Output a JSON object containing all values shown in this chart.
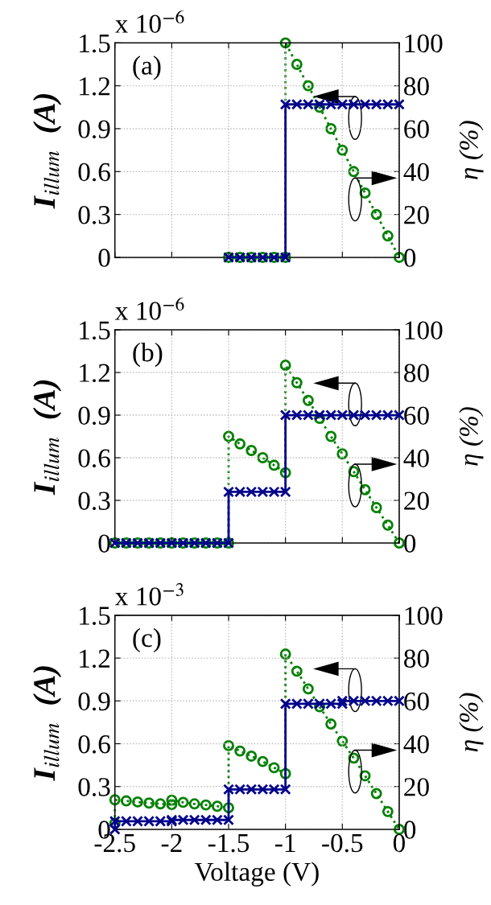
{
  "chart_data": [
    {
      "type": "line",
      "annotations": [
        "x 10$^{−6}$",
        "(a)"
      ],
      "ylabel": "I$_{illum}$  (A)",
      "y2label": "η (%)",
      "xlim": [
        -2.5,
        0
      ],
      "xticks": [
        -2.5,
        -2,
        -1.5,
        -1,
        -0.5,
        0
      ],
      "ylim": [
        0,
        1.5
      ],
      "yticks": [
        0,
        0.3,
        0.6,
        0.9,
        1.2,
        1.5
      ],
      "y2lim": [
        0,
        100
      ],
      "y2ticks": [
        0,
        20,
        40,
        60,
        80,
        100
      ],
      "grid": true,
      "tick_labels": "y",
      "series": [
        {
          "color": "#00008b",
          "marker": "cross",
          "line_style": "solid",
          "x": [
            -1.5,
            -1.4,
            -1.3,
            -1.2,
            -1.1,
            -1.0,
            -1.0,
            -0.9,
            -0.8,
            -0.7,
            -0.6,
            -0.5,
            -0.4,
            -0.3,
            -0.2,
            -0.1,
            0
          ],
          "values": [
            0,
            0,
            0,
            0,
            0,
            0,
            1.07,
            1.07,
            1.07,
            1.07,
            1.07,
            1.07,
            1.07,
            1.07,
            1.07,
            1.07,
            1.07
          ]
        },
        {
          "color": "#008000",
          "marker": "circle",
          "line_style": "dotted",
          "axis": "y2",
          "x": [
            -1.5,
            -1.4,
            -1.3,
            -1.2,
            -1.1,
            -1.0,
            -1.0,
            -0.9,
            -0.8,
            -0.7,
            -0.6,
            -0.5,
            -0.4,
            -0.3,
            -0.2,
            -0.1,
            0
          ],
          "values": [
            0,
            0,
            0,
            0,
            0,
            0,
            100,
            90,
            80,
            70,
            60,
            50,
            40,
            30,
            20,
            10,
            0
          ]
        }
      ]
    },
    {
      "type": "line",
      "annotations": [
        "x 10$^{−6}$",
        "(b)"
      ],
      "ylabel": "I$_{illum}$  (A)",
      "y2label": "η (%)",
      "xlim": [
        -2.5,
        0
      ],
      "xticks": [
        -2.5,
        -2,
        -1.5,
        -1,
        -0.5,
        0
      ],
      "ylim": [
        0,
        1.5
      ],
      "yticks": [
        0,
        0.3,
        0.6,
        0.9,
        1.2,
        1.5
      ],
      "y2lim": [
        0,
        100
      ],
      "y2ticks": [
        0,
        20,
        40,
        60,
        80,
        100
      ],
      "grid": true,
      "tick_labels": "y",
      "series": [
        {
          "color": "#00008b",
          "marker": "cross",
          "line_style": "solid",
          "x": [
            -2.5,
            -2.4,
            -2.3,
            -2.2,
            -2.1,
            -2.0,
            -1.9,
            -1.8,
            -1.7,
            -1.6,
            -1.5,
            -1.5,
            -1.4,
            -1.3,
            -1.2,
            -1.1,
            -1.0,
            -1.0,
            -0.9,
            -0.8,
            -0.7,
            -0.6,
            -0.5,
            -0.4,
            -0.3,
            -0.2,
            -0.1,
            0
          ],
          "values": [
            0,
            0,
            0,
            0,
            0,
            0,
            0,
            0,
            0,
            0,
            0,
            0.36,
            0.36,
            0.36,
            0.36,
            0.36,
            0.36,
            0.9,
            0.9,
            0.9,
            0.9,
            0.9,
            0.9,
            0.9,
            0.9,
            0.9,
            0.9,
            0.9
          ]
        },
        {
          "color": "#008000",
          "marker": "circle",
          "line_style": "dotted",
          "axis": "y2",
          "x": [
            -2.5,
            -2.4,
            -2.3,
            -2.2,
            -2.1,
            -2.0,
            -1.9,
            -1.8,
            -1.7,
            -1.6,
            -1.5,
            -1.5,
            -1.4,
            -1.3,
            -1.2,
            -1.1,
            -1.0,
            -1.0,
            -0.9,
            -0.8,
            -0.7,
            -0.6,
            -0.5,
            -0.4,
            -0.3,
            -0.2,
            -0.1,
            0
          ],
          "values": [
            0,
            0,
            0,
            0,
            0,
            0,
            0,
            0,
            0,
            0,
            0,
            50,
            46.5,
            43.4,
            40,
            36.5,
            33,
            83.4,
            75.2,
            66.9,
            58.5,
            50,
            41.8,
            33.5,
            25,
            16.6,
            8.4,
            0
          ]
        }
      ]
    },
    {
      "type": "line",
      "annotations": [
        "x 10$^{−3}$",
        "(c)"
      ],
      "xlabel": "Voltage (V)",
      "ylabel": "I$_{illum}$  (A)",
      "y2label": "η (%)",
      "xlim": [
        -2.5,
        0
      ],
      "xticks": [
        -2.5,
        -2,
        -1.5,
        -1,
        -0.5,
        0
      ],
      "ylim": [
        0,
        1.5
      ],
      "yticks": [
        0,
        0.3,
        0.6,
        0.9,
        1.2,
        1.5
      ],
      "y2lim": [
        0,
        100
      ],
      "y2ticks": [
        0,
        20,
        40,
        60,
        80,
        100
      ],
      "grid": true,
      "series": [
        {
          "color": "#00008b",
          "marker": "cross",
          "line_style": "solid",
          "x": [
            -2.5,
            -2.5,
            -2.4,
            -2.3,
            -2.2,
            -2.1,
            -2.0,
            -2.0,
            -1.9,
            -1.8,
            -1.7,
            -1.6,
            -1.5,
            -1.5,
            -1.4,
            -1.3,
            -1.2,
            -1.1,
            -1.0,
            -1.0,
            -0.9,
            -0.8,
            -0.7,
            -0.6,
            -0.5,
            -0.5,
            -0.4,
            -0.3,
            -0.2,
            -0.1,
            0
          ],
          "values": [
            0,
            0.057,
            0.057,
            0.057,
            0.057,
            0.057,
            0.057,
            0.066,
            0.066,
            0.066,
            0.066,
            0.066,
            0.066,
            0.28,
            0.28,
            0.28,
            0.28,
            0.28,
            0.28,
            0.88,
            0.88,
            0.88,
            0.88,
            0.88,
            0.88,
            0.9,
            0.9,
            0.9,
            0.9,
            0.9,
            0.9
          ]
        },
        {
          "color": "#008000",
          "marker": "circle",
          "line_style": "dotted",
          "axis": "y2",
          "x": [
            -2.5,
            -2.5,
            -2.4,
            -2.3,
            -2.2,
            -2.1,
            -2.0,
            -2.0,
            -1.9,
            -1.8,
            -1.7,
            -1.6,
            -1.5,
            -1.5,
            -1.4,
            -1.3,
            -1.2,
            -1.1,
            -1.0,
            -1.0,
            -0.9,
            -0.8,
            -0.7,
            -0.6,
            -0.5,
            -0.4,
            -0.3,
            -0.2,
            -0.1,
            0
          ],
          "values": [
            2.8,
            13.8,
            13.3,
            12.8,
            12.3,
            11.9,
            11.6,
            13.6,
            12.6,
            11.9,
            11.4,
            10.8,
            10.1,
            39.1,
            36.6,
            34.2,
            31.7,
            28.8,
            26,
            81.9,
            73.9,
            65.6,
            57.3,
            49.2,
            41.2,
            33.3,
            25,
            16.7,
            8.3,
            0
          ]
        }
      ]
    }
  ]
}
